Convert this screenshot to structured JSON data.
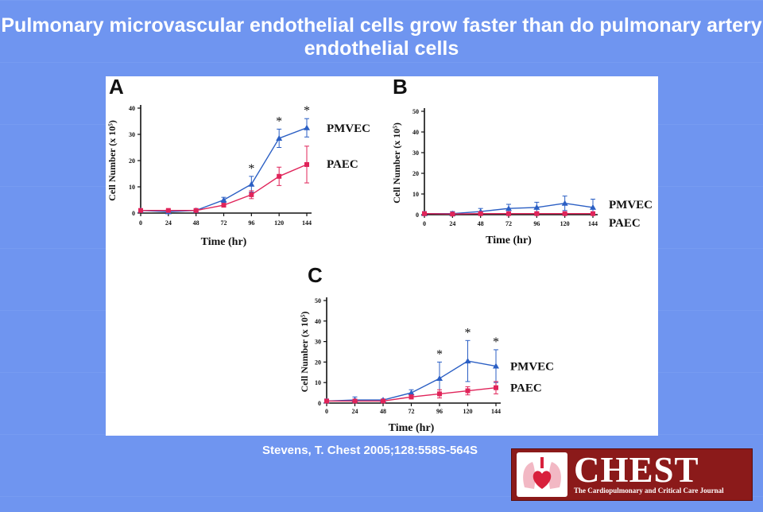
{
  "slide": {
    "title": "Pulmonary microvascular endothelial cells grow faster than do pulmonary artery endothelial cells",
    "citation": "Stevens, T. Chest 2005;128:558S-564S",
    "background_color": "#6f95f0"
  },
  "logo": {
    "name": "CHEST",
    "tagline": "The Cardiopulmonary and Critical Care Journal",
    "emblem": "heart-lungs-icon",
    "color": "#8b1a1a"
  },
  "chart_data": [
    {
      "panel": "A",
      "type": "line",
      "xlabel": "Time (hr)",
      "ylabel": "Cell Number (x 10⁵)",
      "x": [
        0,
        24,
        48,
        72,
        96,
        120,
        144
      ],
      "xticks": [
        "0",
        "24",
        "48",
        "72",
        "96",
        "120",
        "144"
      ],
      "yticks": [
        "0",
        "10",
        "20",
        "30",
        "40"
      ],
      "ylim": [
        0,
        40
      ],
      "series": [
        {
          "name": "PMVEC",
          "marker": "triangle",
          "color": "#2b5fc4",
          "values": [
            1,
            0.5,
            1,
            5,
            11,
            28.5,
            32.5
          ],
          "errors": [
            0.3,
            0.3,
            0.5,
            1,
            3,
            3.5,
            3.5
          ]
        },
        {
          "name": "PAEC",
          "marker": "square",
          "color": "#e0245a",
          "values": [
            1,
            1,
            1,
            3,
            7,
            14,
            18.5
          ],
          "errors": [
            0.3,
            0.3,
            0.3,
            0.5,
            1.5,
            3.5,
            7
          ]
        }
      ],
      "significance": [
        {
          "x": 96,
          "label": "*"
        },
        {
          "x": 120,
          "label": "*"
        },
        {
          "x": 144,
          "label": "*"
        }
      ]
    },
    {
      "panel": "B",
      "type": "line",
      "xlabel": "Time (hr)",
      "ylabel": "Cell Number (x 10⁵)",
      "x": [
        0,
        24,
        48,
        72,
        96,
        120,
        144
      ],
      "xticks": [
        "0",
        "24",
        "48",
        "72",
        "96",
        "120",
        "144"
      ],
      "yticks": [
        "0",
        "10",
        "20",
        "30",
        "40",
        "50"
      ],
      "ylim": [
        0,
        50
      ],
      "series": [
        {
          "name": "PMVEC",
          "marker": "triangle",
          "color": "#2b5fc4",
          "values": [
            0.5,
            0.5,
            1.5,
            3,
            3.5,
            5.5,
            3.5
          ],
          "errors": [
            1,
            1,
            1.5,
            2,
            2.5,
            3.5,
            4
          ]
        },
        {
          "name": "PAEC",
          "marker": "square",
          "color": "#e0245a",
          "values": [
            0.5,
            0.3,
            0.5,
            0.5,
            0.5,
            0.5,
            0.5
          ],
          "errors": [
            0.3,
            0.3,
            0.3,
            0.3,
            0.3,
            0.3,
            0.3
          ]
        }
      ],
      "significance": []
    },
    {
      "panel": "C",
      "type": "line",
      "xlabel": "Time (hr)",
      "ylabel": "Cell Number (x 10⁵)",
      "x": [
        0,
        24,
        48,
        72,
        96,
        120,
        144
      ],
      "xticks": [
        "0",
        "24",
        "48",
        "72",
        "96",
        "120",
        "144"
      ],
      "yticks": [
        "0",
        "10",
        "20",
        "30",
        "40",
        "50"
      ],
      "ylim": [
        0,
        50
      ],
      "series": [
        {
          "name": "PMVEC",
          "marker": "triangle",
          "color": "#2b5fc4",
          "values": [
            1,
            1.5,
            1.5,
            5,
            12,
            20.5,
            18
          ],
          "errors": [
            1,
            1.5,
            0.5,
            1.5,
            8,
            10,
            8
          ]
        },
        {
          "name": "PAEC",
          "marker": "square",
          "color": "#e0245a",
          "values": [
            1,
            1,
            1,
            3,
            4.5,
            6,
            7.5
          ],
          "errors": [
            0.3,
            0.3,
            0.3,
            1,
            2,
            2,
            3
          ]
        }
      ],
      "significance": [
        {
          "x": 96,
          "label": "*"
        },
        {
          "x": 120,
          "label": "*"
        },
        {
          "x": 144,
          "label": "*"
        }
      ]
    }
  ]
}
